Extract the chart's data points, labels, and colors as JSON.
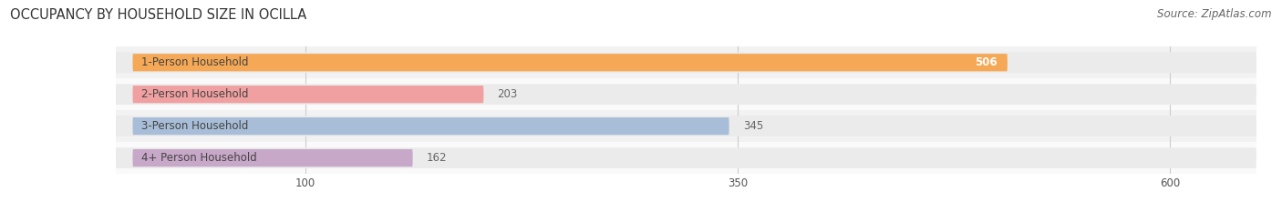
{
  "title": "OCCUPANCY BY HOUSEHOLD SIZE IN OCILLA",
  "source": "Source: ZipAtlas.com",
  "categories": [
    "1-Person Household",
    "2-Person Household",
    "3-Person Household",
    "4+ Person Household"
  ],
  "values": [
    506,
    203,
    345,
    162
  ],
  "bar_colors": [
    "#F5A855",
    "#F0A0A0",
    "#A8BED8",
    "#C8A8C8"
  ],
  "track_colors": [
    "#EBEBEB",
    "#EBEBEB",
    "#EBEBEB",
    "#EBEBEB"
  ],
  "row_bg_colors": [
    "#F2F2F2",
    "#FAFAFA",
    "#F2F2F2",
    "#FAFAFA"
  ],
  "xticks": [
    100,
    350,
    600
  ],
  "xmax": 650,
  "xlim_left": -10,
  "label_color_inside": "#FFFFFF",
  "label_color_outside": "#666666",
  "title_fontsize": 10.5,
  "source_fontsize": 8.5,
  "bar_label_fontsize": 8.5,
  "category_fontsize": 8.5,
  "tick_fontsize": 8.5,
  "background_color": "#FFFFFF",
  "grid_color": "#CCCCCC",
  "inside_threshold": 450
}
